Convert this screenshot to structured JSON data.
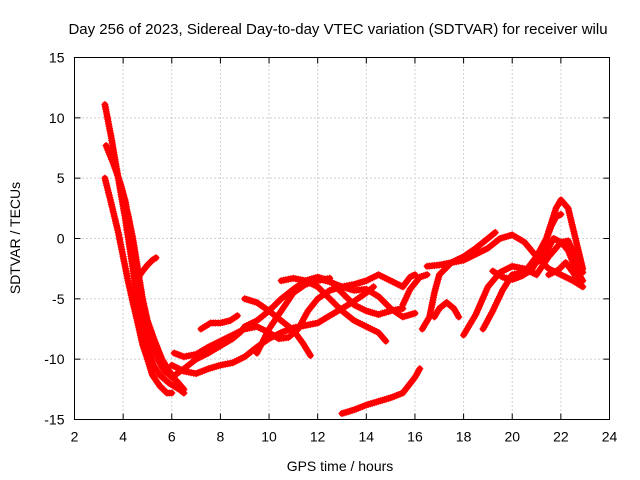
{
  "chart_data": {
    "type": "scatter",
    "title": "Day 256 of 2023, Sidereal Day-to-day VTEC variation (SDTVAR) for receiver wilu",
    "xlabel": "GPS time / hours",
    "ylabel": "SDTVAR / TECUs",
    "xlim": [
      2,
      24
    ],
    "ylim": [
      -15,
      15
    ],
    "xticks": [
      2,
      4,
      6,
      8,
      10,
      12,
      14,
      16,
      18,
      20,
      22,
      24
    ],
    "yticks": [
      -15,
      -10,
      -5,
      0,
      5,
      10,
      15
    ],
    "grid": true,
    "marker": "+",
    "color": "#ff0000",
    "series": [
      {
        "name": "track-1",
        "points": [
          [
            3.25,
            11.1
          ],
          [
            3.5,
            8.5
          ],
          [
            3.8,
            5.0
          ],
          [
            4.1,
            1.5
          ],
          [
            4.4,
            -2.5
          ],
          [
            4.6,
            -5.5
          ],
          [
            4.8,
            -7.5
          ],
          [
            5.0,
            -9.0
          ],
          [
            5.25,
            -10.5
          ],
          [
            5.5,
            -11.3
          ],
          [
            5.9,
            -12.0
          ],
          [
            6.3,
            -12.5
          ],
          [
            6.5,
            -12.8
          ]
        ]
      },
      {
        "name": "track-2",
        "points": [
          [
            3.3,
            7.7
          ],
          [
            3.6,
            6.2
          ],
          [
            3.9,
            4.5
          ],
          [
            4.1,
            3.0
          ],
          [
            4.3,
            0.5
          ],
          [
            4.5,
            -2.0
          ],
          [
            4.7,
            -4.5
          ],
          [
            4.9,
            -6.5
          ],
          [
            5.1,
            -8.0
          ],
          [
            5.3,
            -9.3
          ],
          [
            5.5,
            -10.3
          ],
          [
            5.7,
            -11.0
          ],
          [
            5.9,
            -11.3
          ],
          [
            6.2,
            -11.8
          ],
          [
            6.5,
            -12.5
          ]
        ]
      },
      {
        "name": "track-3",
        "points": [
          [
            3.25,
            5.0
          ],
          [
            3.5,
            3.0
          ],
          [
            3.8,
            0.5
          ],
          [
            4.0,
            -1.5
          ],
          [
            4.2,
            -3.5
          ],
          [
            4.4,
            -5.3
          ],
          [
            4.6,
            -7.0
          ],
          [
            4.8,
            -8.8
          ],
          [
            5.0,
            -10.0
          ],
          [
            5.2,
            -11.3
          ],
          [
            5.5,
            -12.2
          ],
          [
            5.8,
            -12.8
          ],
          [
            6.0,
            -12.8
          ]
        ]
      },
      {
        "name": "track-4",
        "points": [
          [
            3.9,
            4.0
          ],
          [
            4.2,
            2.0
          ],
          [
            4.4,
            0.0
          ],
          [
            4.6,
            -2.5
          ],
          [
            4.8,
            -5.0
          ],
          [
            5.0,
            -6.8
          ],
          [
            5.3,
            -8.5
          ],
          [
            5.6,
            -10.0
          ],
          [
            5.9,
            -11.0
          ],
          [
            6.1,
            -11.5
          ]
        ]
      },
      {
        "name": "track-5",
        "points": [
          [
            4.6,
            -3.3
          ],
          [
            4.8,
            -2.7
          ],
          [
            5.0,
            -2.2
          ],
          [
            5.2,
            -1.8
          ],
          [
            5.35,
            -1.6
          ]
        ]
      },
      {
        "name": "track-6",
        "points": [
          [
            6.0,
            -10.5
          ],
          [
            6.5,
            -11.0
          ],
          [
            7.0,
            -11.2
          ],
          [
            7.5,
            -10.8
          ],
          [
            8.0,
            -10.5
          ],
          [
            8.5,
            -10.3
          ],
          [
            9.0,
            -9.8
          ],
          [
            9.5,
            -9.0
          ],
          [
            10.0,
            -8.3
          ],
          [
            10.5,
            -7.8
          ],
          [
            11.0,
            -7.4
          ],
          [
            11.5,
            -7.2
          ],
          [
            12.0,
            -7.0
          ],
          [
            12.5,
            -6.4
          ],
          [
            13.0,
            -5.8
          ],
          [
            13.5,
            -5.2
          ],
          [
            14.0,
            -4.5
          ],
          [
            14.3,
            -4.0
          ]
        ]
      },
      {
        "name": "track-7",
        "points": [
          [
            6.0,
            -11.5
          ],
          [
            6.5,
            -10.8
          ],
          [
            7.0,
            -10.0
          ],
          [
            7.5,
            -9.5
          ],
          [
            8.0,
            -8.9
          ],
          [
            8.5,
            -8.3
          ],
          [
            8.8,
            -7.8
          ],
          [
            9.0,
            -7.3
          ],
          [
            9.5,
            -6.8
          ],
          [
            10.0,
            -6.0
          ],
          [
            10.5,
            -5.0
          ],
          [
            11.0,
            -4.2
          ],
          [
            11.5,
            -3.5
          ],
          [
            12.0,
            -3.2
          ],
          [
            12.5,
            -3.5
          ],
          [
            13.0,
            -4.5
          ],
          [
            13.5,
            -5.5
          ],
          [
            14.0,
            -6.0
          ],
          [
            14.5,
            -6.3
          ],
          [
            15.0,
            -6.0
          ],
          [
            15.5,
            -5.8
          ]
        ]
      },
      {
        "name": "track-8",
        "points": [
          [
            6.1,
            -9.5
          ],
          [
            6.5,
            -9.8
          ],
          [
            7.0,
            -9.6
          ],
          [
            7.5,
            -9.0
          ],
          [
            8.0,
            -8.5
          ],
          [
            8.5,
            -8.0
          ],
          [
            9.0,
            -7.5
          ],
          [
            9.5,
            -7.3
          ],
          [
            10.0,
            -7.8
          ],
          [
            10.4,
            -8.3
          ],
          [
            10.8,
            -8.2
          ],
          [
            11.2,
            -7.5
          ],
          [
            11.6,
            -6.0
          ],
          [
            12.0,
            -5.0
          ],
          [
            12.5,
            -4.3
          ],
          [
            13.0,
            -4.0
          ],
          [
            13.5,
            -3.8
          ],
          [
            14.0,
            -3.5
          ],
          [
            14.5,
            -3.0
          ],
          [
            15.0,
            -3.5
          ],
          [
            15.5,
            -4.0
          ],
          [
            15.8,
            -3.2
          ],
          [
            16.0,
            -3.0
          ]
        ]
      },
      {
        "name": "track-9",
        "points": [
          [
            7.2,
            -7.5
          ],
          [
            7.6,
            -7.0
          ],
          [
            8.0,
            -7.0
          ],
          [
            8.4,
            -6.8
          ],
          [
            8.7,
            -6.4
          ]
        ]
      },
      {
        "name": "track-10",
        "points": [
          [
            9.0,
            -5.0
          ],
          [
            9.5,
            -5.3
          ],
          [
            10.0,
            -6.0
          ],
          [
            10.5,
            -6.8
          ],
          [
            11.0,
            -7.6
          ],
          [
            11.4,
            -8.7
          ],
          [
            11.7,
            -9.7
          ]
        ]
      },
      {
        "name": "track-11",
        "points": [
          [
            9.5,
            -9.5
          ],
          [
            10.0,
            -7.5
          ],
          [
            10.5,
            -6.0
          ],
          [
            11.0,
            -4.5
          ],
          [
            11.5,
            -3.8
          ],
          [
            12.0,
            -3.5
          ],
          [
            12.5,
            -3.3
          ]
        ]
      },
      {
        "name": "track-12",
        "points": [
          [
            10.5,
            -3.5
          ],
          [
            11.0,
            -3.3
          ],
          [
            11.5,
            -3.5
          ],
          [
            12.0,
            -4.0
          ],
          [
            12.5,
            -5.0
          ],
          [
            13.0,
            -6.0
          ],
          [
            13.5,
            -6.8
          ],
          [
            14.0,
            -7.3
          ],
          [
            14.5,
            -7.8
          ],
          [
            14.8,
            -8.5
          ]
        ]
      },
      {
        "name": "track-13",
        "points": [
          [
            12.0,
            -3.3
          ],
          [
            12.5,
            -3.6
          ],
          [
            13.0,
            -4.0
          ],
          [
            13.5,
            -4.3
          ],
          [
            14.0,
            -4.2
          ],
          [
            14.5,
            -4.8
          ],
          [
            15.0,
            -5.8
          ],
          [
            15.5,
            -6.5
          ],
          [
            16.0,
            -6.2
          ]
        ]
      },
      {
        "name": "track-14",
        "points": [
          [
            13.0,
            -14.5
          ],
          [
            13.5,
            -14.2
          ],
          [
            14.0,
            -13.8
          ],
          [
            14.5,
            -13.5
          ],
          [
            15.0,
            -13.2
          ],
          [
            15.5,
            -12.8
          ],
          [
            16.0,
            -11.5
          ],
          [
            16.2,
            -10.8
          ]
        ]
      },
      {
        "name": "track-15",
        "points": [
          [
            15.5,
            -5.5
          ],
          [
            15.8,
            -4.2
          ],
          [
            16.2,
            -3.2
          ],
          [
            16.5,
            -3.0
          ]
        ]
      },
      {
        "name": "track-16",
        "points": [
          [
            16.3,
            -7.5
          ],
          [
            16.6,
            -6.5
          ],
          [
            16.8,
            -4.5
          ],
          [
            17.0,
            -3.0
          ],
          [
            17.5,
            -2.0
          ],
          [
            18.0,
            -1.5
          ],
          [
            18.5,
            -0.8
          ],
          [
            19.0,
            0.0
          ],
          [
            19.3,
            0.5
          ]
        ]
      },
      {
        "name": "track-17",
        "points": [
          [
            16.5,
            -2.3
          ],
          [
            17.0,
            -2.2
          ],
          [
            17.5,
            -2.0
          ],
          [
            18.0,
            -1.8
          ],
          [
            18.5,
            -1.3
          ],
          [
            19.0,
            -0.8
          ],
          [
            19.5,
            0.0
          ],
          [
            20.0,
            0.3
          ],
          [
            20.5,
            -0.3
          ],
          [
            21.0,
            -1.5
          ],
          [
            21.5,
            -2.5
          ],
          [
            22.0,
            -3.0
          ],
          [
            22.5,
            -3.5
          ],
          [
            22.9,
            -4.0
          ]
        ]
      },
      {
        "name": "track-18",
        "points": [
          [
            16.8,
            -6.5
          ],
          [
            17.0,
            -5.8
          ],
          [
            17.3,
            -5.3
          ],
          [
            17.6,
            -5.8
          ],
          [
            17.8,
            -6.5
          ]
        ]
      },
      {
        "name": "track-19",
        "points": [
          [
            18.0,
            -8.0
          ],
          [
            18.5,
            -6.3
          ],
          [
            19.0,
            -4.0
          ],
          [
            19.5,
            -2.8
          ],
          [
            20.0,
            -2.3
          ],
          [
            20.5,
            -2.5
          ],
          [
            21.0,
            -3.0
          ],
          [
            21.5,
            -1.5
          ],
          [
            21.8,
            -0.8
          ],
          [
            22.0,
            -0.3
          ],
          [
            22.3,
            -1.0
          ],
          [
            22.6,
            -2.5
          ],
          [
            22.9,
            -3.5
          ]
        ]
      },
      {
        "name": "track-20",
        "points": [
          [
            18.8,
            -7.5
          ],
          [
            19.2,
            -6.0
          ],
          [
            19.6,
            -4.3
          ],
          [
            20.0,
            -3.0
          ],
          [
            20.5,
            -2.8
          ],
          [
            21.0,
            -1.5
          ],
          [
            21.4,
            0.0
          ],
          [
            21.8,
            2.5
          ],
          [
            22.0,
            3.2
          ],
          [
            22.3,
            2.5
          ],
          [
            22.6,
            0.0
          ],
          [
            22.9,
            -2.5
          ]
        ]
      },
      {
        "name": "track-21",
        "points": [
          [
            19.2,
            -2.7
          ],
          [
            19.6,
            -3.2
          ],
          [
            20.0,
            -3.4
          ],
          [
            20.4,
            -3.1
          ],
          [
            20.8,
            -2.6
          ],
          [
            21.2,
            -1.2
          ],
          [
            21.6,
            1.0
          ],
          [
            21.8,
            1.8
          ],
          [
            22.0,
            2.0
          ]
        ]
      },
      {
        "name": "track-22",
        "points": [
          [
            21.0,
            -2.0
          ],
          [
            21.3,
            -1.5
          ],
          [
            21.7,
            0.0
          ],
          [
            22.0,
            -0.3
          ],
          [
            22.3,
            -0.2
          ],
          [
            22.6,
            -1.5
          ],
          [
            22.9,
            -2.8
          ]
        ]
      },
      {
        "name": "track-23",
        "points": [
          [
            21.5,
            -3.0
          ],
          [
            21.9,
            -2.6
          ],
          [
            22.2,
            -2.0
          ],
          [
            22.5,
            -2.8
          ],
          [
            22.8,
            -3.8
          ]
        ]
      }
    ]
  }
}
